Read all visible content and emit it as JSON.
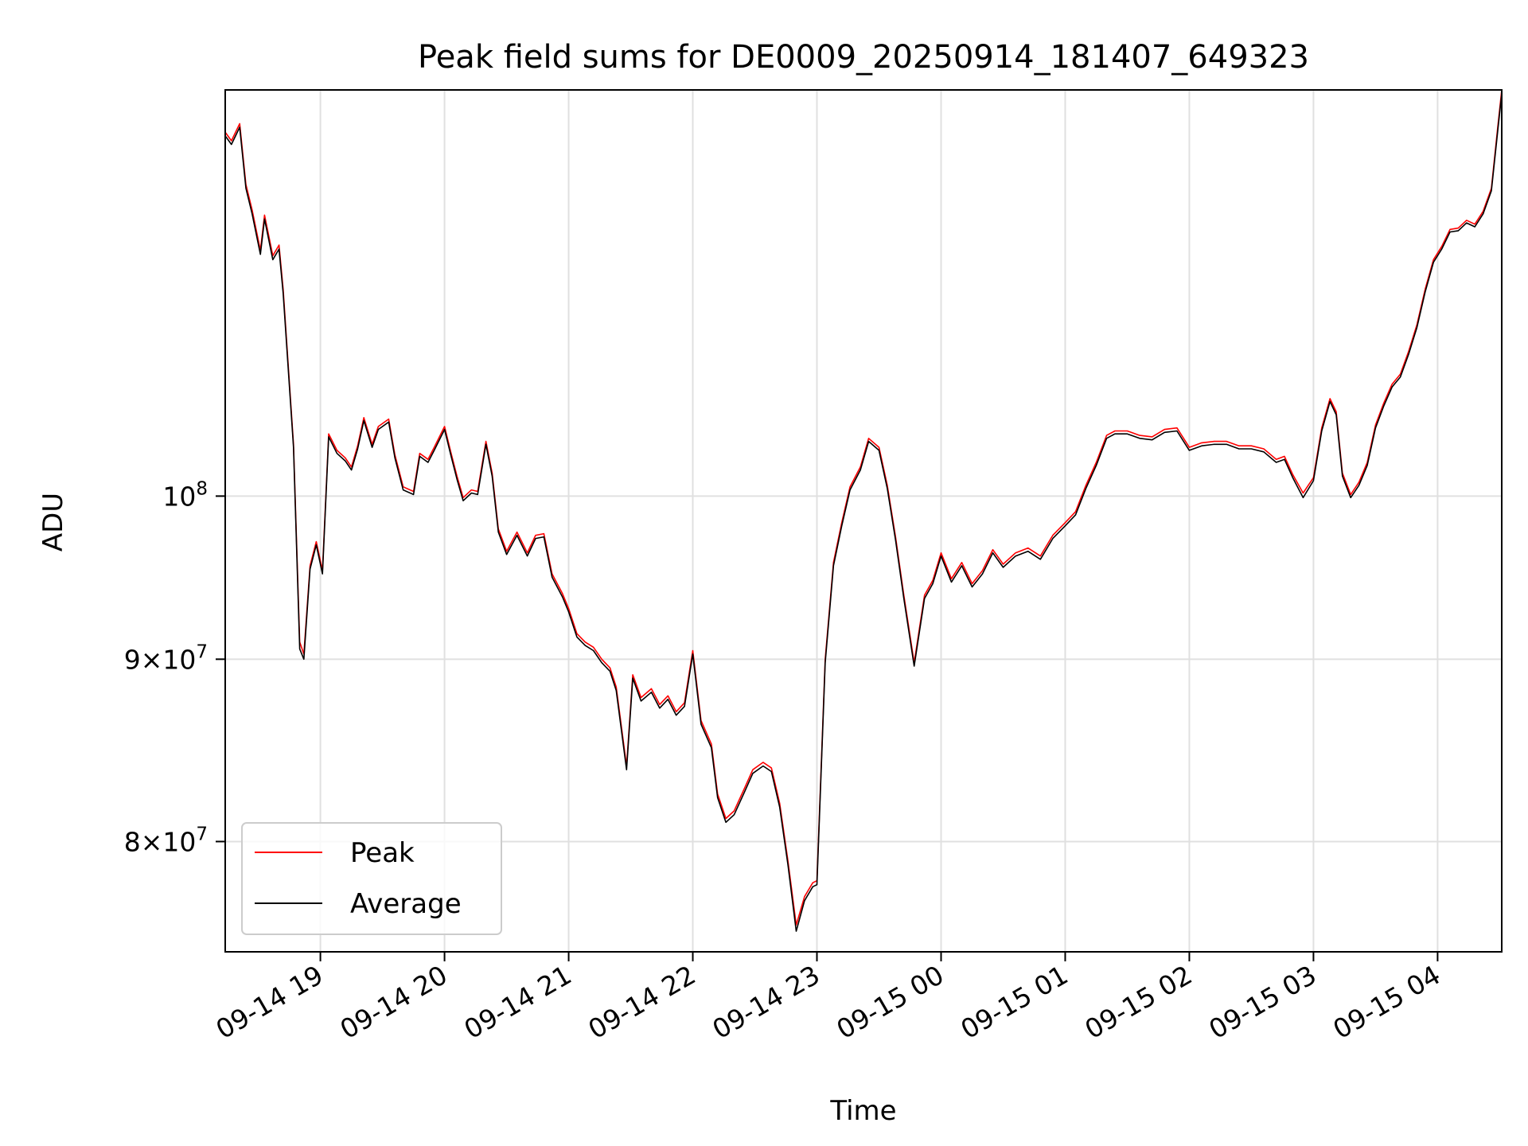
{
  "chart_data": {
    "type": "line",
    "title": "Peak field sums for DE0009_20250914_181407_649323",
    "xlabel": "Time",
    "ylabel": "ADU",
    "x_range": [
      "2025-09-14 18:14",
      "2025-09-15 04:31"
    ],
    "y_scale": "log",
    "ylim": [
      74500000,
      130000000
    ],
    "x_ticks": [
      {
        "time": "2025-09-14 19:00",
        "label": "09-14 19"
      },
      {
        "time": "2025-09-14 20:00",
        "label": "09-14 20"
      },
      {
        "time": "2025-09-14 21:00",
        "label": "09-14 21"
      },
      {
        "time": "2025-09-14 22:00",
        "label": "09-14 22"
      },
      {
        "time": "2025-09-14 23:00",
        "label": "09-14 23"
      },
      {
        "time": "2025-09-15 00:00",
        "label": "09-15 00"
      },
      {
        "time": "2025-09-15 01:00",
        "label": "09-15 01"
      },
      {
        "time": "2025-09-15 02:00",
        "label": "09-15 02"
      },
      {
        "time": "2025-09-15 03:00",
        "label": "09-15 03"
      },
      {
        "time": "2025-09-15 04:00",
        "label": "09-15 04"
      }
    ],
    "y_ticks": [
      {
        "value": 80000000,
        "mantissa": "8",
        "exponent": "7"
      },
      {
        "value": 90000000,
        "mantissa": "9",
        "exponent": "7"
      },
      {
        "value": 100000000,
        "mantissa": "",
        "exponent": "8"
      }
    ],
    "grid": true,
    "legend_position": "lower-left",
    "series": [
      {
        "name": "Peak",
        "color": "#ff0000",
        "x": [
          "2025-09-14 18:14",
          "2025-09-14 18:17",
          "2025-09-14 18:21",
          "2025-09-14 18:24",
          "2025-09-14 18:27",
          "2025-09-14 18:31",
          "2025-09-14 18:33",
          "2025-09-14 18:37",
          "2025-09-14 18:40",
          "2025-09-14 18:42",
          "2025-09-14 18:47",
          "2025-09-14 18:50",
          "2025-09-14 18:52",
          "2025-09-14 18:55",
          "2025-09-14 18:58",
          "2025-09-14 19:01",
          "2025-09-14 19:04",
          "2025-09-14 19:08",
          "2025-09-14 19:12",
          "2025-09-14 19:15",
          "2025-09-14 19:18",
          "2025-09-14 19:21",
          "2025-09-14 19:25",
          "2025-09-14 19:28",
          "2025-09-14 19:33",
          "2025-09-14 19:36",
          "2025-09-14 19:40",
          "2025-09-14 19:45",
          "2025-09-14 19:48",
          "2025-09-14 19:52",
          "2025-09-14 19:55",
          "2025-09-14 20:00",
          "2025-09-14 20:03",
          "2025-09-14 20:06",
          "2025-09-14 20:09",
          "2025-09-14 20:13",
          "2025-09-14 20:16",
          "2025-09-14 20:20",
          "2025-09-14 20:23",
          "2025-09-14 20:26",
          "2025-09-14 20:30",
          "2025-09-14 20:35",
          "2025-09-14 20:40",
          "2025-09-14 20:44",
          "2025-09-14 20:48",
          "2025-09-14 20:52",
          "2025-09-14 20:57",
          "2025-09-14 21:00",
          "2025-09-14 21:04",
          "2025-09-14 21:08",
          "2025-09-14 21:12",
          "2025-09-14 21:16",
          "2025-09-14 21:20",
          "2025-09-14 21:23",
          "2025-09-14 21:28",
          "2025-09-14 21:31",
          "2025-09-14 21:35",
          "2025-09-14 21:40",
          "2025-09-14 21:44",
          "2025-09-14 21:48",
          "2025-09-14 21:52",
          "2025-09-14 21:56",
          "2025-09-14 22:00",
          "2025-09-14 22:04",
          "2025-09-14 22:09",
          "2025-09-14 22:12",
          "2025-09-14 22:16",
          "2025-09-14 22:20",
          "2025-09-14 22:25",
          "2025-09-14 22:29",
          "2025-09-14 22:34",
          "2025-09-14 22:38",
          "2025-09-14 22:42",
          "2025-09-14 22:46",
          "2025-09-14 22:50",
          "2025-09-14 22:54",
          "2025-09-14 22:58",
          "2025-09-14 23:00",
          "2025-09-14 23:04",
          "2025-09-14 23:08",
          "2025-09-14 23:12",
          "2025-09-14 23:16",
          "2025-09-14 23:21",
          "2025-09-14 23:25",
          "2025-09-14 23:30",
          "2025-09-14 23:34",
          "2025-09-14 23:38",
          "2025-09-14 23:42",
          "2025-09-14 23:47",
          "2025-09-14 23:52",
          "2025-09-14 23:56",
          "2025-09-15 00:00",
          "2025-09-15 00:05",
          "2025-09-15 00:10",
          "2025-09-15 00:15",
          "2025-09-15 00:20",
          "2025-09-15 00:25",
          "2025-09-15 00:30",
          "2025-09-15 00:36",
          "2025-09-15 00:42",
          "2025-09-15 00:48",
          "2025-09-15 00:54",
          "2025-09-15 01:00",
          "2025-09-15 01:05",
          "2025-09-15 01:10",
          "2025-09-15 01:15",
          "2025-09-15 01:20",
          "2025-09-15 01:24",
          "2025-09-15 01:30",
          "2025-09-15 01:36",
          "2025-09-15 01:42",
          "2025-09-15 01:48",
          "2025-09-15 01:54",
          "2025-09-15 02:00",
          "2025-09-15 02:06",
          "2025-09-15 02:12",
          "2025-09-15 02:18",
          "2025-09-15 02:24",
          "2025-09-15 02:30",
          "2025-09-15 02:36",
          "2025-09-15 02:42",
          "2025-09-15 02:46",
          "2025-09-15 02:50",
          "2025-09-15 02:55",
          "2025-09-15 03:00",
          "2025-09-15 03:04",
          "2025-09-15 03:08",
          "2025-09-15 03:11",
          "2025-09-15 03:14",
          "2025-09-15 03:18",
          "2025-09-15 03:22",
          "2025-09-15 03:26",
          "2025-09-15 03:30",
          "2025-09-15 03:34",
          "2025-09-15 03:38",
          "2025-09-15 03:42",
          "2025-09-15 03:46",
          "2025-09-15 03:50",
          "2025-09-15 03:54",
          "2025-09-15 03:58",
          "2025-09-15 04:02",
          "2025-09-15 04:06",
          "2025-09-15 04:10",
          "2025-09-15 04:14",
          "2025-09-15 04:18",
          "2025-09-15 04:22",
          "2025-09-15 04:26",
          "2025-09-15 04:29",
          "2025-09-15 04:31"
        ],
        "values": [
          126500000,
          125800000,
          127200000,
          122300000,
          120300000,
          117200000,
          119900000,
          116800000,
          117600000,
          114300000,
          103400000,
          91000000,
          90300000,
          95600000,
          97100000,
          95300000,
          104100000,
          103000000,
          102500000,
          101900000,
          103300000,
          105200000,
          103400000,
          104600000,
          105100000,
          102700000,
          100600000,
          100300000,
          102800000,
          102400000,
          103200000,
          104600000,
          102900000,
          101300000,
          99900000,
          100400000,
          100300000,
          103600000,
          101500000,
          97900000,
          96500000,
          97700000,
          96400000,
          97500000,
          97600000,
          95100000,
          93900000,
          93000000,
          91500000,
          91000000,
          90700000,
          90000000,
          89500000,
          88400000,
          84000000,
          89100000,
          87800000,
          88300000,
          87400000,
          87900000,
          87000000,
          87500000,
          90500000,
          86500000,
          85200000,
          82500000,
          81200000,
          81600000,
          82800000,
          83800000,
          84200000,
          83900000,
          82000000,
          79000000,
          75800000,
          77200000,
          77900000,
          78000000,
          90000000,
          95800000,
          98300000,
          100600000,
          101900000,
          103800000,
          103200000,
          100700000,
          97400000,
          93800000,
          89800000,
          93800000,
          94700000,
          96400000,
          94800000,
          95800000,
          94500000,
          95300000,
          96600000,
          95700000,
          96400000,
          96700000,
          96200000,
          97500000,
          98300000,
          99000000,
          100700000,
          102200000,
          104000000,
          104300000,
          104300000,
          104000000,
          103900000,
          104400000,
          104500000,
          103200000,
          103500000,
          103600000,
          103600000,
          103300000,
          103300000,
          103100000,
          102400000,
          102600000,
          101400000,
          100200000,
          101200000,
          104500000,
          106500000,
          105600000,
          101500000,
          100100000,
          100900000,
          102200000,
          104700000,
          106200000,
          107500000,
          108200000,
          109800000,
          111700000,
          114300000,
          116500000,
          117500000,
          118800000,
          118900000,
          119500000,
          119200000,
          120200000,
          122000000,
          126800000,
          130000000
        ]
      },
      {
        "name": "Average",
        "color": "#000000",
        "x": [
          "2025-09-14 18:14",
          "2025-09-14 18:17",
          "2025-09-14 18:21",
          "2025-09-14 18:24",
          "2025-09-14 18:27",
          "2025-09-14 18:31",
          "2025-09-14 18:33",
          "2025-09-14 18:37",
          "2025-09-14 18:40",
          "2025-09-14 18:42",
          "2025-09-14 18:47",
          "2025-09-14 18:50",
          "2025-09-14 18:52",
          "2025-09-14 18:55",
          "2025-09-14 18:58",
          "2025-09-14 19:01",
          "2025-09-14 19:04",
          "2025-09-14 19:08",
          "2025-09-14 19:12",
          "2025-09-14 19:15",
          "2025-09-14 19:18",
          "2025-09-14 19:21",
          "2025-09-14 19:25",
          "2025-09-14 19:28",
          "2025-09-14 19:33",
          "2025-09-14 19:36",
          "2025-09-14 19:40",
          "2025-09-14 19:45",
          "2025-09-14 19:48",
          "2025-09-14 19:52",
          "2025-09-14 19:55",
          "2025-09-14 20:00",
          "2025-09-14 20:03",
          "2025-09-14 20:06",
          "2025-09-14 20:09",
          "2025-09-14 20:13",
          "2025-09-14 20:16",
          "2025-09-14 20:20",
          "2025-09-14 20:23",
          "2025-09-14 20:26",
          "2025-09-14 20:30",
          "2025-09-14 20:35",
          "2025-09-14 20:40",
          "2025-09-14 20:44",
          "2025-09-14 20:48",
          "2025-09-14 20:52",
          "2025-09-14 20:57",
          "2025-09-14 21:00",
          "2025-09-14 21:04",
          "2025-09-14 21:08",
          "2025-09-14 21:12",
          "2025-09-14 21:16",
          "2025-09-14 21:20",
          "2025-09-14 21:23",
          "2025-09-14 21:28",
          "2025-09-14 21:31",
          "2025-09-14 21:35",
          "2025-09-14 21:40",
          "2025-09-14 21:44",
          "2025-09-14 21:48",
          "2025-09-14 21:52",
          "2025-09-14 21:56",
          "2025-09-14 22:00",
          "2025-09-14 22:04",
          "2025-09-14 22:09",
          "2025-09-14 22:12",
          "2025-09-14 22:16",
          "2025-09-14 22:20",
          "2025-09-14 22:25",
          "2025-09-14 22:29",
          "2025-09-14 22:34",
          "2025-09-14 22:38",
          "2025-09-14 22:42",
          "2025-09-14 22:46",
          "2025-09-14 22:50",
          "2025-09-14 22:54",
          "2025-09-14 22:58",
          "2025-09-14 23:00",
          "2025-09-14 23:04",
          "2025-09-14 23:08",
          "2025-09-14 23:12",
          "2025-09-14 23:16",
          "2025-09-14 23:21",
          "2025-09-14 23:25",
          "2025-09-14 23:30",
          "2025-09-14 23:34",
          "2025-09-14 23:38",
          "2025-09-14 23:42",
          "2025-09-14 23:47",
          "2025-09-14 23:52",
          "2025-09-14 23:56",
          "2025-09-15 00:00",
          "2025-09-15 00:05",
          "2025-09-15 00:10",
          "2025-09-15 00:15",
          "2025-09-15 00:20",
          "2025-09-15 00:25",
          "2025-09-15 00:30",
          "2025-09-15 00:36",
          "2025-09-15 00:42",
          "2025-09-15 00:48",
          "2025-09-15 00:54",
          "2025-09-15 01:00",
          "2025-09-15 01:05",
          "2025-09-15 01:10",
          "2025-09-15 01:15",
          "2025-09-15 01:20",
          "2025-09-15 01:24",
          "2025-09-15 01:30",
          "2025-09-15 01:36",
          "2025-09-15 01:42",
          "2025-09-15 01:48",
          "2025-09-15 01:54",
          "2025-09-15 02:00",
          "2025-09-15 02:06",
          "2025-09-15 02:12",
          "2025-09-15 02:18",
          "2025-09-15 02:24",
          "2025-09-15 02:30",
          "2025-09-15 02:36",
          "2025-09-15 02:42",
          "2025-09-15 02:46",
          "2025-09-15 02:50",
          "2025-09-15 02:55",
          "2025-09-15 03:00",
          "2025-09-15 03:04",
          "2025-09-15 03:08",
          "2025-09-15 03:11",
          "2025-09-15 03:14",
          "2025-09-15 03:18",
          "2025-09-15 03:22",
          "2025-09-15 03:26",
          "2025-09-15 03:30",
          "2025-09-15 03:34",
          "2025-09-15 03:38",
          "2025-09-15 03:42",
          "2025-09-15 03:46",
          "2025-09-15 03:50",
          "2025-09-15 03:54",
          "2025-09-15 03:58",
          "2025-09-15 04:02",
          "2025-09-15 04:06",
          "2025-09-15 04:10",
          "2025-09-15 04:14",
          "2025-09-15 04:18",
          "2025-09-15 04:22",
          "2025-09-15 04:26",
          "2025-09-15 04:29",
          "2025-09-15 04:31"
        ],
        "values": [
          126200000,
          125500000,
          126900000,
          122000000,
          120000000,
          116900000,
          119600000,
          116500000,
          117300000,
          114000000,
          103200000,
          90600000,
          90000000,
          95400000,
          96900000,
          95100000,
          103900000,
          102800000,
          102300000,
          101700000,
          103100000,
          105000000,
          103200000,
          104400000,
          104900000,
          102500000,
          100400000,
          100100000,
          102600000,
          102200000,
          103000000,
          104400000,
          102700000,
          101100000,
          99700000,
          100200000,
          100100000,
          103400000,
          101300000,
          97700000,
          96300000,
          97500000,
          96200000,
          97300000,
          97400000,
          94900000,
          93700000,
          92800000,
          91300000,
          90800000,
          90500000,
          89800000,
          89300000,
          88200000,
          83800000,
          88900000,
          87600000,
          88100000,
          87200000,
          87700000,
          86800000,
          87300000,
          90300000,
          86300000,
          85000000,
          82300000,
          81000000,
          81400000,
          82600000,
          83600000,
          84000000,
          83700000,
          81800000,
          78800000,
          75500000,
          77000000,
          77700000,
          77800000,
          89800000,
          95600000,
          98100000,
          100400000,
          101700000,
          103600000,
          103000000,
          100500000,
          97200000,
          93600000,
          89600000,
          93600000,
          94500000,
          96200000,
          94600000,
          95600000,
          94300000,
          95100000,
          96400000,
          95500000,
          96200000,
          96500000,
          96000000,
          97300000,
          98100000,
          98800000,
          100500000,
          102000000,
          103800000,
          104100000,
          104100000,
          103800000,
          103700000,
          104200000,
          104300000,
          103000000,
          103300000,
          103400000,
          103400000,
          103100000,
          103100000,
          102900000,
          102200000,
          102400000,
          101200000,
          99900000,
          101000000,
          104300000,
          106300000,
          105400000,
          101300000,
          99900000,
          100700000,
          102000000,
          104500000,
          106000000,
          107300000,
          108000000,
          109600000,
          111500000,
          114100000,
          116300000,
          117300000,
          118600000,
          118700000,
          119300000,
          119000000,
          120000000,
          121800000,
          126500000,
          129700000
        ]
      }
    ]
  }
}
